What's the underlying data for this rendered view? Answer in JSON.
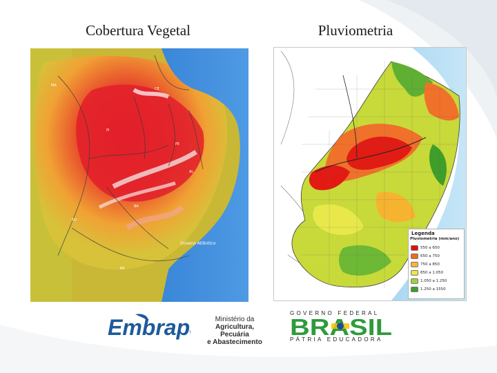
{
  "titles": {
    "left": "Cobertura Vegetal",
    "right": "Pluviometria"
  },
  "map_left": {
    "ocean_label": "Oceano Atlântico",
    "icon": "vegetation-cover-map"
  },
  "map_right": {
    "icon": "rainfall-map",
    "legend": {
      "title": "Legenda",
      "subtitle": "Pluviometria (mm/ano)",
      "items": [
        {
          "label": "550 a 650",
          "color": "#e01010"
        },
        {
          "label": "650 a 750",
          "color": "#f26a1c"
        },
        {
          "label": "750 a 850",
          "color": "#f7b733"
        },
        {
          "label": "850 a 1.050",
          "color": "#e8e84a"
        },
        {
          "label": "1.050 a 1.250",
          "color": "#9fd23a"
        },
        {
          "label": "1.250 a 1550",
          "color": "#3f9e2a"
        }
      ]
    }
  },
  "logos": {
    "embrapa": {
      "wordmark": "Embrapa",
      "icon": "embrapa-logo",
      "brand_color": "#1d5a9c"
    },
    "ministry": {
      "line1": "Ministério da",
      "line2": "Agricultura, Pecuária",
      "line3": "e Abastecimento"
    },
    "government": {
      "top": "GOVERNO FEDERAL",
      "wordmark": "BRASIL",
      "bottom": "PÁTRIA EDUCADORA",
      "icon": "brasil-gov-logo",
      "colors": {
        "green": "#2e9b3c",
        "yellow": "#f4c400",
        "blue": "#1f4c9c"
      }
    }
  }
}
